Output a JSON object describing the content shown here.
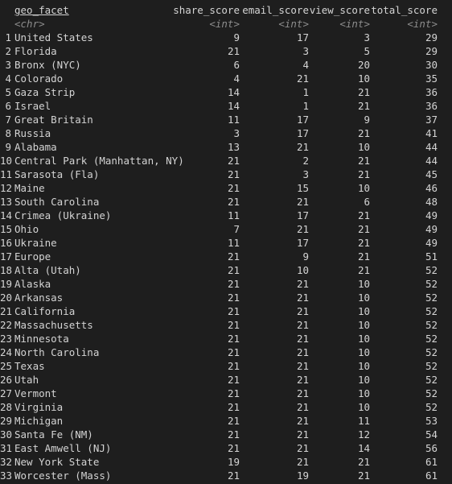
{
  "columns": [
    "geo_facet",
    "share_score",
    "email_score",
    "view_score",
    "total_score"
  ],
  "types": [
    "<chr>",
    "<int>",
    "<int>",
    "<int>",
    "<int>"
  ],
  "rows": [
    [
      "1",
      "United States",
      "9",
      "17",
      "3",
      "29"
    ],
    [
      "2",
      "Florida",
      "21",
      "3",
      "5",
      "29"
    ],
    [
      "3",
      "Bronx (NYC)",
      "6",
      "4",
      "20",
      "30"
    ],
    [
      "4",
      "Colorado",
      "4",
      "21",
      "10",
      "35"
    ],
    [
      "5",
      "Gaza Strip",
      "14",
      "1",
      "21",
      "36"
    ],
    [
      "6",
      "Israel",
      "14",
      "1",
      "21",
      "36"
    ],
    [
      "7",
      "Great Britain",
      "11",
      "17",
      "9",
      "37"
    ],
    [
      "8",
      "Russia",
      "3",
      "17",
      "21",
      "41"
    ],
    [
      "9",
      "Alabama",
      "13",
      "21",
      "10",
      "44"
    ],
    [
      "10",
      "Central Park (Manhattan, NY)",
      "21",
      "2",
      "21",
      "44"
    ],
    [
      "11",
      "Sarasota (Fla)",
      "21",
      "3",
      "21",
      "45"
    ],
    [
      "12",
      "Maine",
      "21",
      "15",
      "10",
      "46"
    ],
    [
      "13",
      "South Carolina",
      "21",
      "21",
      "6",
      "48"
    ],
    [
      "14",
      "Crimea (Ukraine)",
      "11",
      "17",
      "21",
      "49"
    ],
    [
      "15",
      "Ohio",
      "7",
      "21",
      "21",
      "49"
    ],
    [
      "16",
      "Ukraine",
      "11",
      "17",
      "21",
      "49"
    ],
    [
      "17",
      "Europe",
      "21",
      "9",
      "21",
      "51"
    ],
    [
      "18",
      "Alta (Utah)",
      "21",
      "10",
      "21",
      "52"
    ],
    [
      "19",
      "Alaska",
      "21",
      "21",
      "10",
      "52"
    ],
    [
      "20",
      "Arkansas",
      "21",
      "21",
      "10",
      "52"
    ],
    [
      "21",
      "California",
      "21",
      "21",
      "10",
      "52"
    ],
    [
      "22",
      "Massachusetts",
      "21",
      "21",
      "10",
      "52"
    ],
    [
      "23",
      "Minnesota",
      "21",
      "21",
      "10",
      "52"
    ],
    [
      "24",
      "North Carolina",
      "21",
      "21",
      "10",
      "52"
    ],
    [
      "25",
      "Texas",
      "21",
      "21",
      "10",
      "52"
    ],
    [
      "26",
      "Utah",
      "21",
      "21",
      "10",
      "52"
    ],
    [
      "27",
      "Vermont",
      "21",
      "21",
      "10",
      "52"
    ],
    [
      "28",
      "Virginia",
      "21",
      "21",
      "10",
      "52"
    ],
    [
      "29",
      "Michigan",
      "21",
      "21",
      "11",
      "53"
    ],
    [
      "30",
      "Santa Fe (NM)",
      "21",
      "21",
      "12",
      "54"
    ],
    [
      "31",
      "East Amwell (NJ)",
      "21",
      "21",
      "14",
      "56"
    ],
    [
      "32",
      "New York State",
      "19",
      "21",
      "21",
      "61"
    ],
    [
      "33",
      "Worcester (Mass)",
      "21",
      "19",
      "21",
      "61"
    ]
  ]
}
